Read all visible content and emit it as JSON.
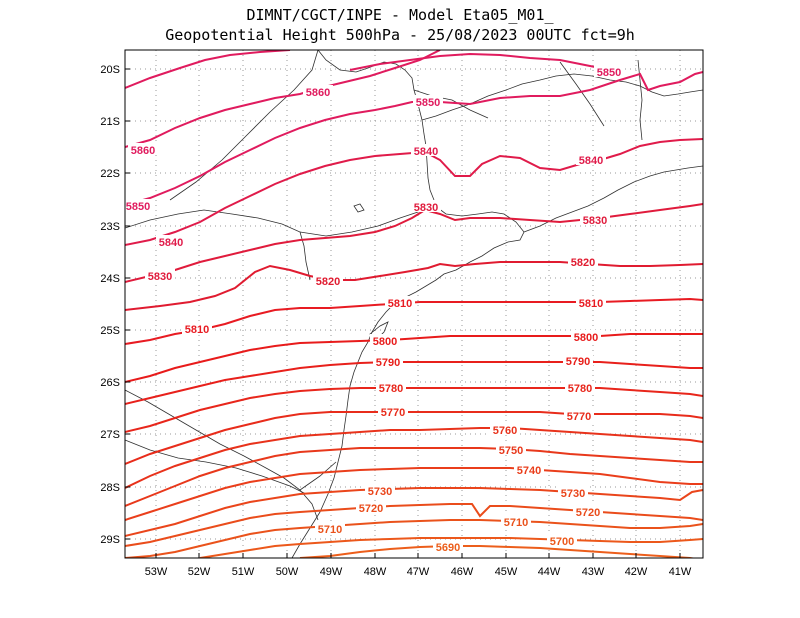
{
  "title": {
    "line1": "DIMNT/CGCT/INPE -  Model Eta05_M01_",
    "line2": "Geopotential Height 500hPa -  25/08/2023 00UTC fct=9h"
  },
  "axes": {
    "lat_labels": [
      "20S",
      "21S",
      "22S",
      "23S",
      "24S",
      "25S",
      "26S",
      "27S",
      "28S",
      "29S"
    ],
    "lon_labels": [
      "53W",
      "52W",
      "51W",
      "50W",
      "49W",
      "48W",
      "47W",
      "46W",
      "45W",
      "44W",
      "43W",
      "42W",
      "41W"
    ]
  },
  "chart_data": {
    "type": "contour-map",
    "variable": "Geopotential Height 500hPa",
    "units": "gpm",
    "contour_interval": 10,
    "lat_range": [
      -29.3,
      -19.9
    ],
    "lon_range": [
      -53.7,
      -40.5
    ],
    "levels": [
      {
        "value": 5850,
        "color": "#e01b5e",
        "labels": [
          "5850",
          "5850",
          "5850"
        ]
      },
      {
        "value": 5860,
        "color": "#e01b5e",
        "labels": [
          "5860",
          "5860"
        ]
      },
      {
        "value": 5840,
        "color": "#e01b4a",
        "labels": [
          "5840",
          "5840",
          "5840"
        ]
      },
      {
        "value": 5830,
        "color": "#e01b3c",
        "labels": [
          "5830",
          "5830",
          "5830"
        ]
      },
      {
        "value": 5820,
        "color": "#e01b30",
        "labels": [
          "5820",
          "5820"
        ]
      },
      {
        "value": 5810,
        "color": "#e81b22",
        "labels": [
          "5810",
          "5810",
          "5810"
        ]
      },
      {
        "value": 5800,
        "color": "#e81b1b",
        "labels": [
          "5800",
          "5800"
        ]
      },
      {
        "value": 5790,
        "color": "#e8201b",
        "labels": [
          "5790",
          "5790"
        ]
      },
      {
        "value": 5780,
        "color": "#e8261b",
        "labels": [
          "5780",
          "5780"
        ]
      },
      {
        "value": 5770,
        "color": "#e82c1b",
        "labels": [
          "5770",
          "5770"
        ]
      },
      {
        "value": 5760,
        "color": "#e8321b",
        "labels": [
          "5760"
        ]
      },
      {
        "value": 5750,
        "color": "#e8381b",
        "labels": [
          "5750"
        ]
      },
      {
        "value": 5740,
        "color": "#ea3e1b",
        "labels": [
          "5740"
        ]
      },
      {
        "value": 5730,
        "color": "#ea451b",
        "labels": [
          "5730",
          "5730"
        ]
      },
      {
        "value": 5720,
        "color": "#ea4c1b",
        "labels": [
          "5720",
          "5720"
        ]
      },
      {
        "value": 5710,
        "color": "#ea521b",
        "labels": [
          "5710",
          "5710"
        ]
      },
      {
        "value": 5700,
        "color": "#ec581b",
        "labels": [
          "5700"
        ]
      },
      {
        "value": 5690,
        "color": "#ec5e1b",
        "labels": [
          "5690"
        ]
      }
    ]
  }
}
